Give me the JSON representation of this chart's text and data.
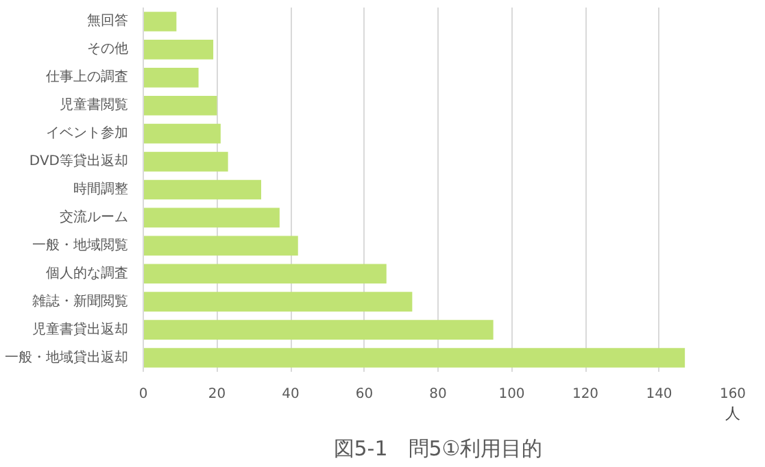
{
  "chart_data": {
    "type": "bar",
    "orientation": "horizontal",
    "title": "図5-1　問5①利用目的",
    "xlabel": "人",
    "categories": [
      "無回答",
      "その他",
      "仕事上の調査",
      "児童書閲覧",
      "イベント参加",
      "DVD等貸出返却",
      "時間調整",
      "交流ルーム",
      "一般・地域閲覧",
      "個人的な調査",
      "雑誌・新聞閲覧",
      "児童書貸出返却",
      "一般・地域貸出返却"
    ],
    "values": [
      9,
      19,
      15,
      20,
      21,
      23,
      32,
      37,
      42,
      66,
      73,
      95,
      147
    ],
    "color": "#c0e374",
    "xlim": [
      0,
      160
    ],
    "xticks": [
      0,
      20,
      40,
      60,
      80,
      100,
      120,
      140,
      160
    ],
    "grid": "x"
  }
}
